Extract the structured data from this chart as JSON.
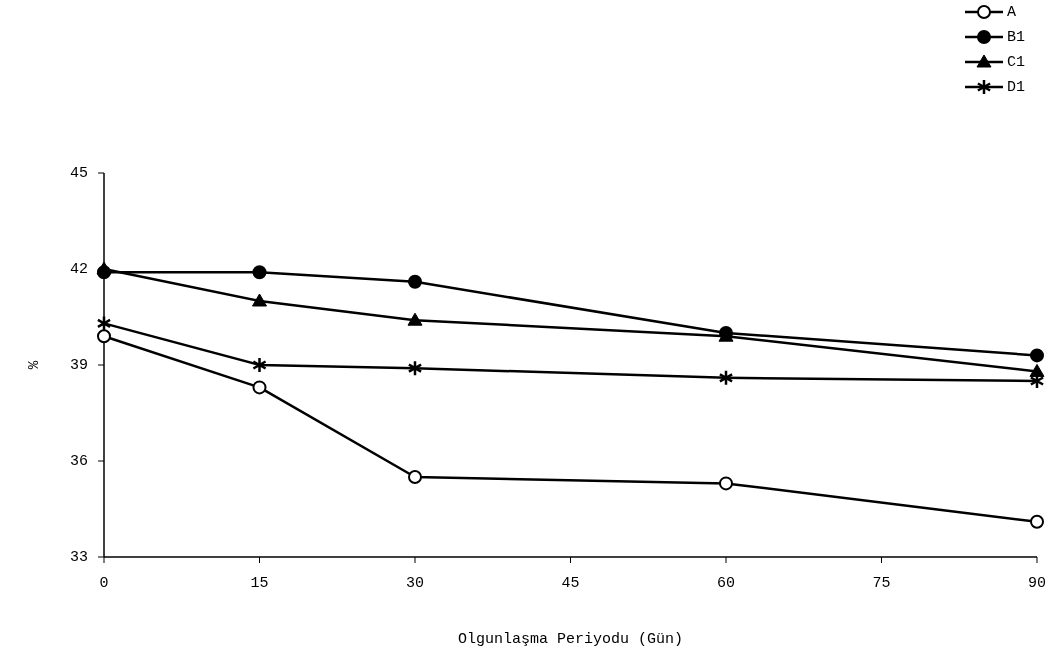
{
  "chart_data": {
    "type": "line",
    "xlabel": "Olgunlaşma Periyodu (Gün)",
    "ylabel": "%",
    "x": [
      0,
      15,
      30,
      60,
      90
    ],
    "xlim": [
      0,
      90
    ],
    "xticks": [
      0,
      15,
      30,
      45,
      60,
      75,
      90
    ],
    "ylim": [
      33,
      45
    ],
    "yticks": [
      33,
      36,
      39,
      42,
      45
    ],
    "grid": false,
    "legend": "top right",
    "line_style": "solid",
    "series": [
      {
        "name": "A",
        "color": "#000000",
        "marker": "circle",
        "values": [
          39.9,
          38.3,
          35.5,
          35.3,
          34.1
        ]
      },
      {
        "name": "B1",
        "color": "#000000",
        "marker": "circle",
        "values": [
          41.9,
          41.9,
          41.6,
          40.0,
          39.3
        ]
      },
      {
        "name": "C1",
        "color": "#000000",
        "marker": "triangle",
        "values": [
          42.0,
          41.0,
          40.4,
          39.9,
          38.8
        ]
      },
      {
        "name": "D1",
        "color": "#000000",
        "marker": "cross",
        "values": [
          40.3,
          39.0,
          38.9,
          38.6,
          38.5
        ]
      }
    ]
  }
}
